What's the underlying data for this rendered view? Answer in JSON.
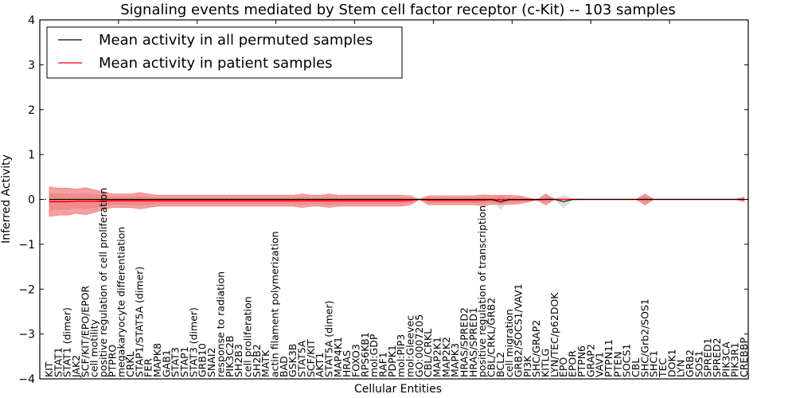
{
  "chart_data": {
    "type": "line",
    "title": "Signaling events mediated by Stem cell factor receptor (c-Kit) -- 103 samples",
    "xlabel": "Cellular Entities",
    "ylabel": "Inferred Activity",
    "ylim": [
      -4,
      4
    ],
    "yticks": [
      -4,
      -3,
      -2,
      -1,
      0,
      1,
      2,
      3,
      4
    ],
    "ytick_labels": [
      "−4",
      "−3",
      "−2",
      "−1",
      "0",
      "1",
      "2",
      "3",
      "4"
    ],
    "grid": false,
    "legend_position": "top-left",
    "legend": [
      {
        "label": "Mean activity in all permuted samples",
        "color": "#000000"
      },
      {
        "label": "Mean activity in patient samples",
        "color": "#ff0000"
      }
    ],
    "zero_line": {
      "style": "dotted",
      "color": "#000000",
      "value": 0
    },
    "colors": {
      "patient_line": "#ff0000",
      "patient_band": "#f08080",
      "permuted_line": "#000000",
      "permuted_band": "#c8c8c8"
    },
    "categories": [
      "KIT",
      "STAT1",
      "STAT1 (dimer)",
      "JAK2",
      "SCF/KIT/EPO/EPOR",
      "cell motility",
      "positive regulation of cell proliferation",
      "PTPRO",
      "megakaryocyte differentiation",
      "CRKL",
      "STAP1/STAT5A (dimer)",
      "FER",
      "MAPK8",
      "GAB1",
      "STAT3",
      "STAP1",
      "STAT3 (dimer)",
      "GRB10",
      "SNAI2",
      "response to radiation",
      "PIK3C2B",
      "SH2B3",
      "cell proliferation",
      "SH2B2",
      "MATK",
      "actin filament polymerization",
      "BAD",
      "GSK3B",
      "STAT5A",
      "SCF/KIT",
      "AKT1",
      "STAT5A (dimer)",
      "MAP4K1",
      "HRAS",
      "FOXO3",
      "RPS6KB1",
      "mol:GDP",
      "RAF1",
      "PDPK1",
      "mol:PIP3",
      "mol:Gleevec",
      "GO:0007205",
      "CBL/CRKL",
      "MAP2K1",
      "MAP2K2",
      "MAPK3",
      "HRAS/SPRED2",
      "HRAS/SPRED1",
      "positive regulation of transcription",
      "CBL/CRKL/GRB2",
      "BCL2",
      "cell migration",
      "GRB2/SOCS1/VAV1",
      "PI3K",
      "SHC/GRAP2",
      "KITLG",
      "LYN/TEC/p62DOK",
      "EPO",
      "EPOR",
      "PTPN6",
      "GRAP2",
      "VAV1",
      "PTPN11",
      "PTEN",
      "SOCS1",
      "CBL",
      "SHC/Grb2/SOS1",
      "SHC1",
      "TEC",
      "DOK1",
      "LYN",
      "GRB2",
      "SOS1",
      "SPRED1",
      "SPRED2",
      "PIK3CA",
      "PIK3R1",
      "CREBBP"
    ],
    "series": [
      {
        "name": "Mean activity in patient samples",
        "values": [
          -0.05,
          -0.05,
          -0.05,
          -0.04,
          -0.04,
          -0.04,
          -0.03,
          -0.03,
          -0.03,
          -0.03,
          -0.03,
          -0.03,
          -0.03,
          -0.03,
          -0.03,
          -0.03,
          -0.03,
          -0.03,
          -0.03,
          -0.03,
          -0.03,
          -0.03,
          -0.03,
          -0.03,
          -0.03,
          -0.03,
          -0.03,
          -0.03,
          -0.03,
          -0.03,
          -0.03,
          -0.03,
          -0.03,
          -0.03,
          -0.03,
          -0.03,
          -0.03,
          -0.03,
          -0.03,
          -0.03,
          -0.02,
          0.0,
          -0.02,
          -0.02,
          -0.02,
          -0.02,
          -0.02,
          -0.02,
          -0.02,
          -0.01,
          -0.01,
          -0.01,
          -0.01,
          -0.01,
          -0.01,
          0.0,
          0.0,
          0.0,
          0.0,
          0.0,
          0.0,
          0.0,
          0.0,
          0.0,
          0.0,
          0.0,
          0.0,
          0.0,
          0.0,
          0.0,
          0.0,
          0.0,
          0.0,
          0.0,
          0.0,
          0.0,
          0.0,
          0.0
        ],
        "std": [
          0.33,
          0.3,
          0.3,
          0.27,
          0.3,
          0.25,
          0.2,
          0.15,
          0.15,
          0.15,
          0.18,
          0.15,
          0.12,
          0.12,
          0.12,
          0.12,
          0.12,
          0.12,
          0.12,
          0.12,
          0.12,
          0.12,
          0.12,
          0.12,
          0.12,
          0.12,
          0.12,
          0.12,
          0.15,
          0.12,
          0.12,
          0.15,
          0.12,
          0.12,
          0.12,
          0.12,
          0.12,
          0.12,
          0.12,
          0.12,
          0.1,
          0.0,
          0.1,
          0.1,
          0.1,
          0.1,
          0.1,
          0.1,
          0.12,
          0.1,
          0.1,
          0.1,
          0.09,
          0.05,
          0.0,
          0.12,
          0.0,
          0.0,
          0.0,
          0.0,
          0.0,
          0.0,
          0.0,
          0.0,
          0.0,
          0.0,
          0.12,
          0.0,
          0.0,
          0.0,
          0.0,
          0.0,
          0.0,
          0.0,
          0.0,
          0.0,
          0.0,
          0.05
        ]
      },
      {
        "name": "Mean activity in all permuted samples",
        "values": [
          0.0,
          0.0,
          0.0,
          0.0,
          0.0,
          0.0,
          0.0,
          0.0,
          0.0,
          0.0,
          0.0,
          0.0,
          0.0,
          0.0,
          0.0,
          0.0,
          0.0,
          0.0,
          0.0,
          0.0,
          0.0,
          0.0,
          0.0,
          0.0,
          0.0,
          0.0,
          0.0,
          0.0,
          0.0,
          0.0,
          0.0,
          0.0,
          0.0,
          0.0,
          0.0,
          0.0,
          0.0,
          0.0,
          0.0,
          0.0,
          0.0,
          0.0,
          0.0,
          0.0,
          0.0,
          0.0,
          0.0,
          0.0,
          0.0,
          0.0,
          -0.06,
          0.0,
          0.0,
          0.0,
          0.0,
          0.0,
          0.0,
          -0.05,
          0.0,
          0.0,
          0.0,
          0.0,
          0.0,
          0.0,
          0.0,
          0.0,
          0.0,
          0.0,
          0.0,
          0.0,
          0.0,
          0.0,
          0.0,
          0.0,
          0.0,
          0.0,
          0.0,
          0.0
        ],
        "std": [
          0.02,
          0.02,
          0.02,
          0.02,
          0.02,
          0.02,
          0.02,
          0.02,
          0.02,
          0.02,
          0.02,
          0.02,
          0.02,
          0.02,
          0.02,
          0.02,
          0.02,
          0.02,
          0.02,
          0.02,
          0.02,
          0.02,
          0.02,
          0.02,
          0.02,
          0.02,
          0.02,
          0.02,
          0.02,
          0.02,
          0.02,
          0.02,
          0.02,
          0.02,
          0.02,
          0.02,
          0.02,
          0.02,
          0.02,
          0.02,
          0.02,
          0.0,
          0.02,
          0.02,
          0.02,
          0.02,
          0.02,
          0.02,
          0.02,
          0.02,
          0.17,
          0.02,
          0.02,
          0.02,
          0.02,
          0.02,
          0.02,
          0.15,
          0.02,
          0.02,
          0.0,
          0.0,
          0.0,
          0.0,
          0.0,
          0.0,
          0.0,
          0.0,
          0.0,
          0.0,
          0.0,
          0.0,
          0.0,
          0.0,
          0.0,
          0.0,
          0.0,
          0.0
        ]
      }
    ]
  }
}
